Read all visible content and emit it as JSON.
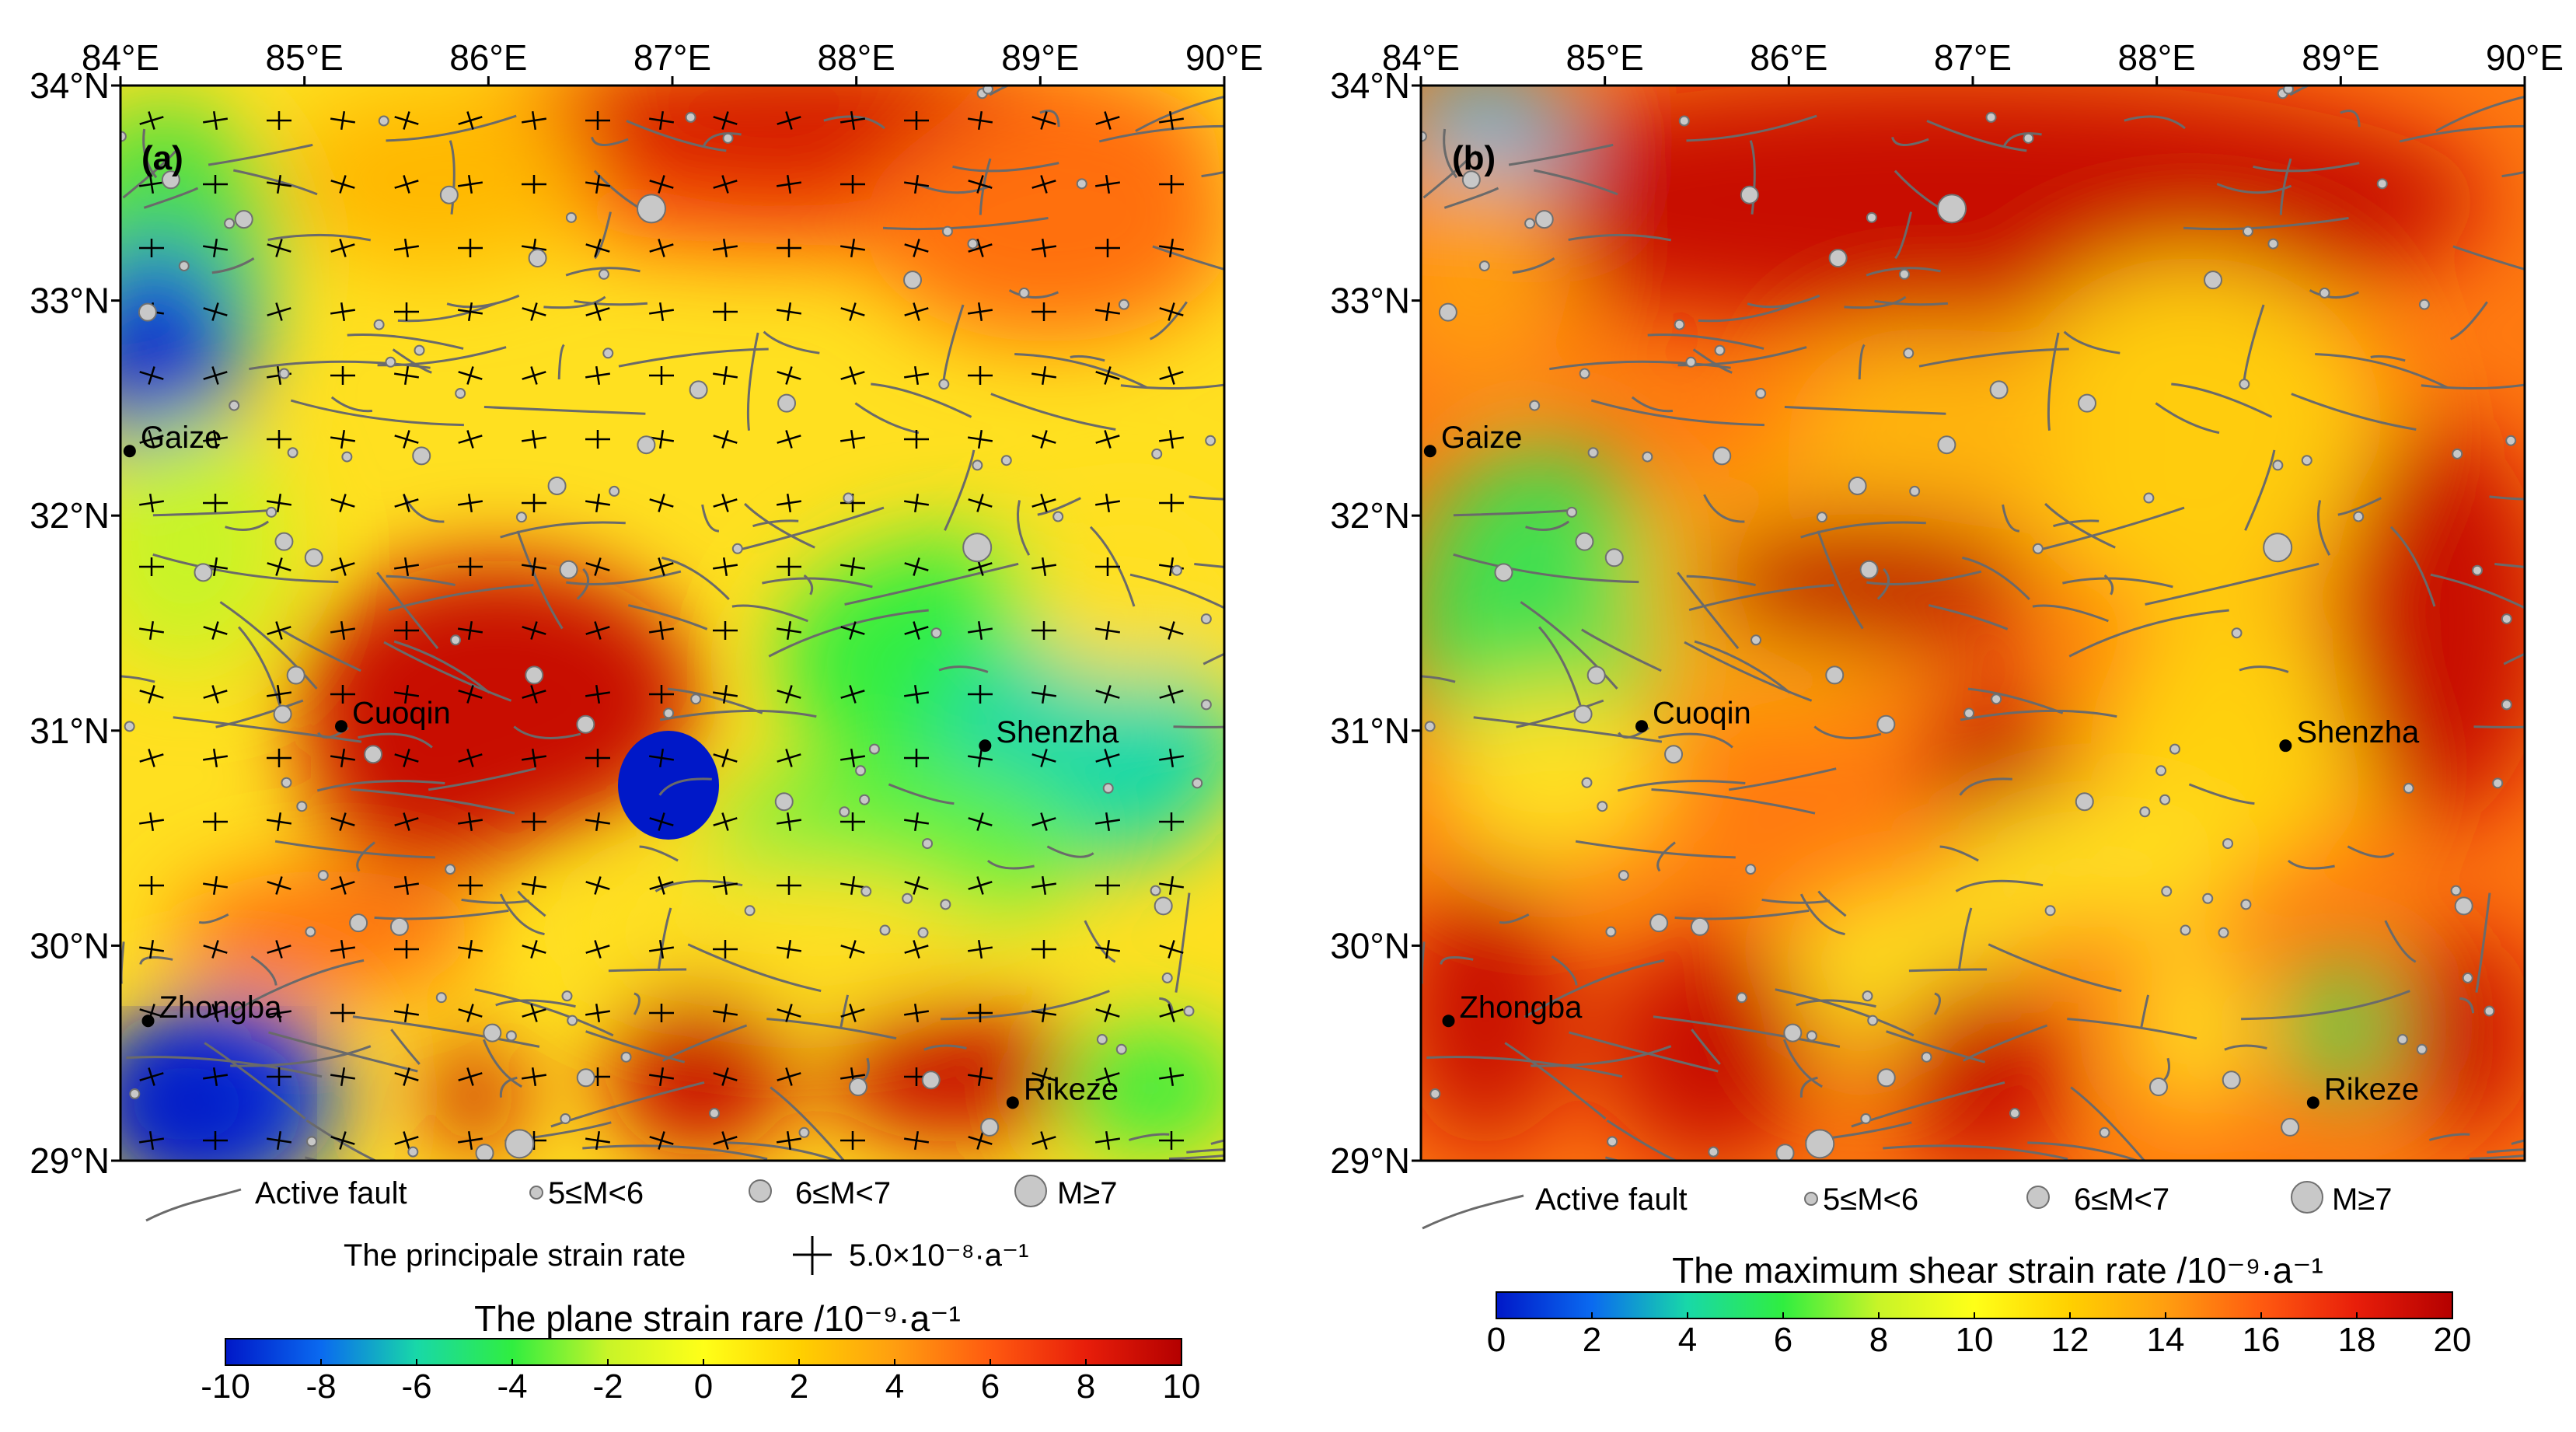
{
  "panels": [
    {
      "label": "(a)",
      "x_ticks": [
        "84°E",
        "85°E",
        "86°E",
        "87°E",
        "88°E",
        "89°E",
        "90°E"
      ],
      "y_ticks": [
        "34°N",
        "33°N",
        "32°N",
        "31°N",
        "30°N",
        "29°N"
      ],
      "towns": [
        {
          "name": "Gaize",
          "lon": 84.05,
          "lat": 32.3
        },
        {
          "name": "Cuoqin",
          "lon": 85.2,
          "lat": 31.02
        },
        {
          "name": "Shenzha",
          "lon": 88.7,
          "lat": 30.93
        },
        {
          "name": "Zhongba",
          "lon": 84.15,
          "lat": 29.65
        },
        {
          "name": "Rikeze",
          "lon": 88.85,
          "lat": 29.27
        }
      ],
      "legend": {
        "fault": "Active fault",
        "m1": "5≤M<6",
        "m2": "6≤M<7",
        "m3": "M≥7",
        "strain_text": "The principale strain rate",
        "strain_scale": "5.0×10⁻⁸·a⁻¹"
      },
      "colorbar": {
        "title": "The plane strain rare /10⁻⁹·a⁻¹",
        "min": -10,
        "max": 10,
        "ticks": [
          "-10",
          "-8",
          "-6",
          "-4",
          "-2",
          "0",
          "2",
          "4",
          "6",
          "8",
          "10"
        ]
      }
    },
    {
      "label": "(b)",
      "x_ticks": [
        "84°E",
        "85°E",
        "86°E",
        "87°E",
        "88°E",
        "89°E",
        "90°E"
      ],
      "y_ticks": [
        "34°N",
        "33°N",
        "32°N",
        "31°N",
        "30°N",
        "29°N"
      ],
      "towns": [
        {
          "name": "Gaize",
          "lon": 84.05,
          "lat": 32.3
        },
        {
          "name": "Cuoqin",
          "lon": 85.2,
          "lat": 31.02
        },
        {
          "name": "Shenzha",
          "lon": 88.7,
          "lat": 30.93
        },
        {
          "name": "Zhongba",
          "lon": 84.15,
          "lat": 29.65
        },
        {
          "name": "Rikeze",
          "lon": 88.85,
          "lat": 29.27
        }
      ],
      "legend": {
        "fault": "Active fault",
        "m1": "5≤M<6",
        "m2": "6≤M<7",
        "m3": "M≥7"
      },
      "colorbar": {
        "title": "The maximum shear strain rate /10⁻⁹·a⁻¹",
        "min": 0,
        "max": 20,
        "ticks": [
          "0",
          "2",
          "4",
          "6",
          "8",
          "10",
          "12",
          "14",
          "16",
          "18",
          "20"
        ]
      }
    }
  ],
  "colors": {
    "fault": "#6a6a6a",
    "quake_fill": "#c8c8c8",
    "quake_stroke": "#707070",
    "colormap": [
      "#0018c8",
      "#0a6af0",
      "#18d8a8",
      "#30ee40",
      "#c8f428",
      "#ffff18",
      "#ffd000",
      "#ff9e10",
      "#ff5a10",
      "#e81e0a",
      "#b40000"
    ]
  }
}
